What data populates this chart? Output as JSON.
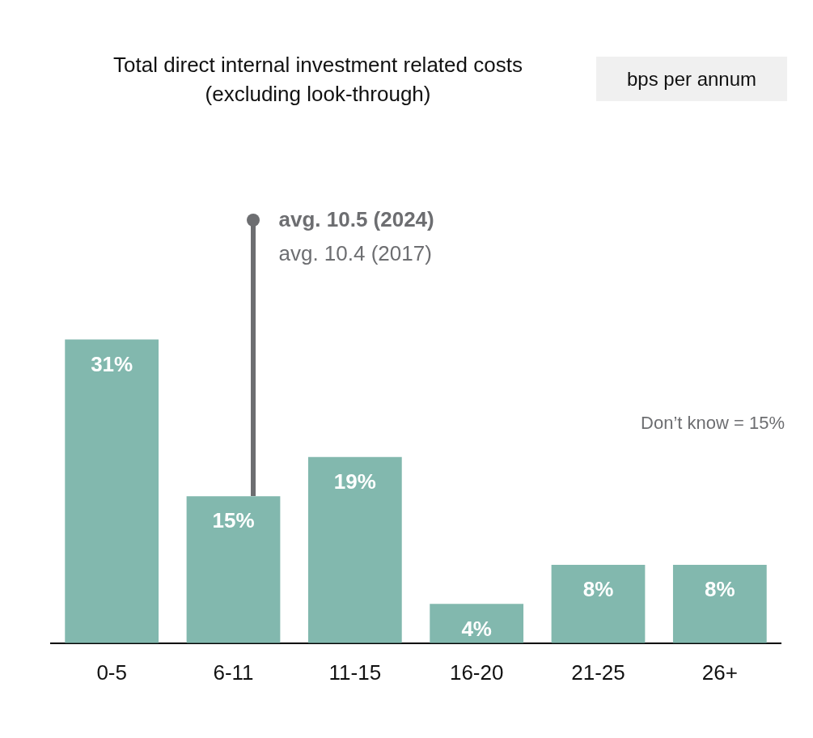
{
  "chart_data": {
    "type": "bar",
    "title": "Total direct internal investment related costs (excluding look-through)",
    "subtitle": "bps per annum",
    "categories": [
      "0-5",
      "6-11",
      "11-15",
      "16-20",
      "21-25",
      "26+"
    ],
    "values": [
      31,
      15,
      19,
      4,
      8,
      8
    ],
    "color": "#82b8ae",
    "data_labels": true,
    "value_labels": [
      "31%",
      "15%",
      "19%",
      "4%",
      "8%",
      "8%"
    ],
    "tick_labels": "x",
    "grid": false,
    "legend": false,
    "annotations": [
      "avg. 10.5 (2024)",
      "avg. 10.4 (2017)",
      "Don’t know = 15%"
    ]
  }
}
